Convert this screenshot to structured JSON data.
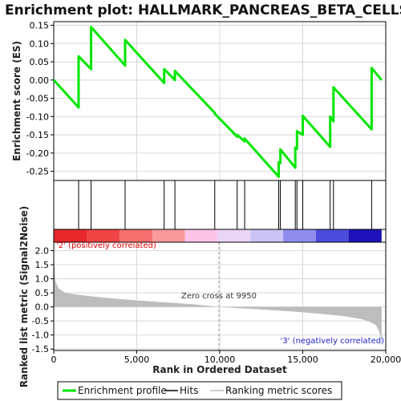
{
  "chart_data": {
    "type": "line",
    "title": "Enrichment plot: HALLMARK_PANCREAS_BETA_CELLS",
    "xlabel": "Rank in Ordered Dataset",
    "ylabel_top": "Enrichment score (ES)",
    "ylabel_bottom": "Ranked list metric (Signal2Noise)",
    "xlim": [
      0,
      20000
    ],
    "x_ticks": [
      0,
      5000,
      10000,
      15000,
      20000
    ],
    "x_tick_labels": [
      "0",
      "5,000",
      "10,000",
      "15,000",
      "20,000"
    ],
    "es_ylim": [
      -0.275,
      0.16
    ],
    "es_y_ticks": [
      -0.25,
      -0.2,
      -0.15,
      -0.1,
      -0.05,
      0.0,
      0.05,
      0.1,
      0.15
    ],
    "es_y_tick_labels": [
      "-0.25",
      "-0.20",
      "-0.15",
      "-0.10",
      "-0.05",
      "0.00",
      "0.05",
      "0.10",
      "0.15"
    ],
    "metric_ylim": [
      -1.55,
      2.3
    ],
    "metric_y_ticks": [
      -1.5,
      -1.0,
      -0.5,
      0.0,
      0.5,
      1.0,
      1.5,
      2.0
    ],
    "metric_y_tick_labels": [
      "-1.5",
      "-1.0",
      "-0.5",
      "0.0",
      "0.5",
      "1.0",
      "1.5",
      "2.0"
    ],
    "hits": [
      1500,
      2250,
      4300,
      6650,
      7300,
      9700,
      11050,
      11500,
      13550,
      13650,
      14550,
      14650,
      15000,
      16650,
      16850,
      19150
    ],
    "enrichment_profile": {
      "x": [
        0,
        1500,
        1500,
        2250,
        2250,
        4300,
        4300,
        6650,
        6650,
        7300,
        7300,
        9700,
        9700,
        11050,
        11050,
        11500,
        11500,
        13550,
        13550,
        13650,
        13650,
        14550,
        14550,
        14650,
        14650,
        15000,
        15000,
        16650,
        16650,
        16850,
        16850,
        19150,
        19150,
        19750
      ],
      "y": [
        0.0,
        -0.075,
        0.065,
        0.03,
        0.145,
        0.04,
        0.11,
        -0.008,
        0.03,
        0.0,
        0.025,
        -0.09,
        -0.092,
        -0.155,
        -0.15,
        -0.168,
        -0.16,
        -0.265,
        -0.225,
        -0.227,
        -0.19,
        -0.24,
        -0.185,
        -0.188,
        -0.14,
        -0.15,
        -0.098,
        -0.183,
        -0.1,
        -0.113,
        -0.02,
        -0.135,
        0.033,
        0.0
      ]
    },
    "ranked_metric": {
      "x": [
        0,
        100,
        300,
        700,
        1500,
        3000,
        5000,
        7000,
        8500,
        9950,
        11500,
        13000,
        14500,
        16000,
        17500,
        18500,
        19000,
        19400,
        19600,
        19700,
        19750
      ],
      "y": [
        2.0,
        0.9,
        0.65,
        0.5,
        0.43,
        0.33,
        0.23,
        0.15,
        0.09,
        0.0,
        -0.06,
        -0.11,
        -0.17,
        -0.24,
        -0.33,
        -0.43,
        -0.52,
        -0.65,
        -0.85,
        -1.1,
        -1.4
      ]
    },
    "heatmap_colors": [
      "#e8282a",
      "#f04444",
      "#f76f6f",
      "#fb9a9a",
      "#fdc4e8",
      "#e9d6f4",
      "#cbc3f5",
      "#8f8cee",
      "#4d4bda",
      "#1d12b8"
    ],
    "zero_cross_rank": 9950,
    "annotations": {
      "positive": "'2' (positively correlated)",
      "negative": "'3' (negatively correlated)",
      "zero_cross": "Zero cross at 9950"
    },
    "legend": {
      "items": [
        "Enrichment profile",
        "Hits",
        "Ranking metric scores"
      ],
      "colors": [
        "#00ff00",
        "#000000",
        "#bdbdbd"
      ]
    },
    "grid": true
  }
}
